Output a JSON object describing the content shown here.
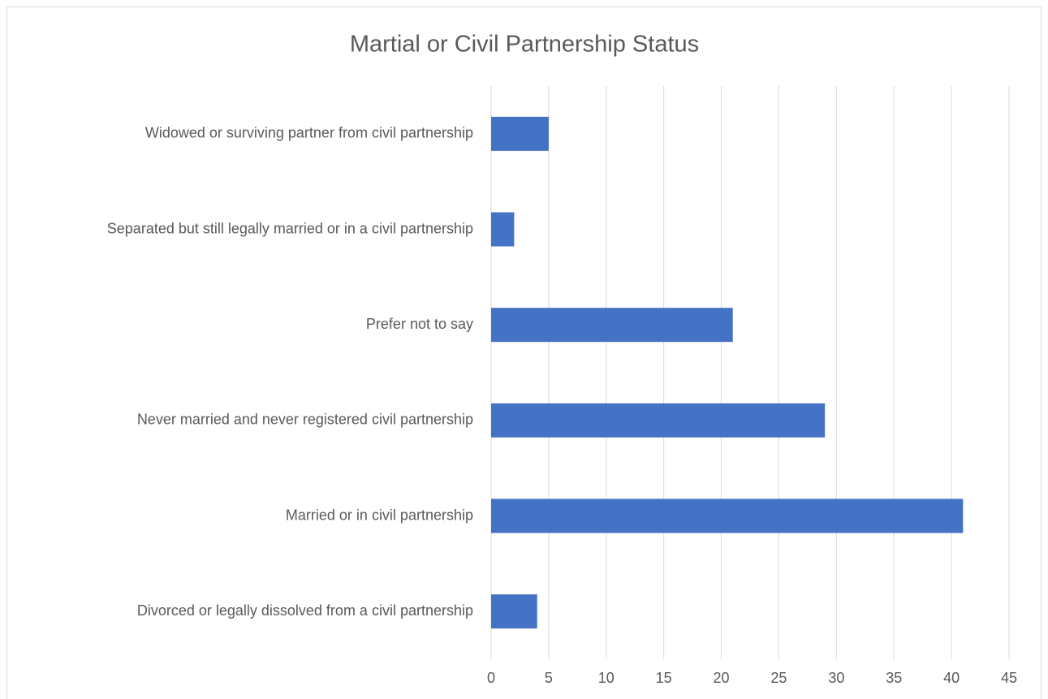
{
  "chart_data": {
    "type": "bar",
    "orientation": "horizontal",
    "title": "Martial or Civil Partnership Status",
    "categories": [
      "Widowed or surviving partner from civil partnership",
      "Separated but still legally married or in a civil partnership",
      "Prefer not to say",
      "Never married and never registered civil partnership",
      "Married or in civil partnership",
      "Divorced or legally dissolved from a civil partnership"
    ],
    "values": [
      5,
      2,
      21,
      29,
      41,
      4
    ],
    "color": "#4472c4",
    "xlim": [
      0,
      45
    ],
    "xticks": [
      0,
      5,
      10,
      15,
      20,
      25,
      30,
      35,
      40,
      45
    ],
    "grid": true
  }
}
